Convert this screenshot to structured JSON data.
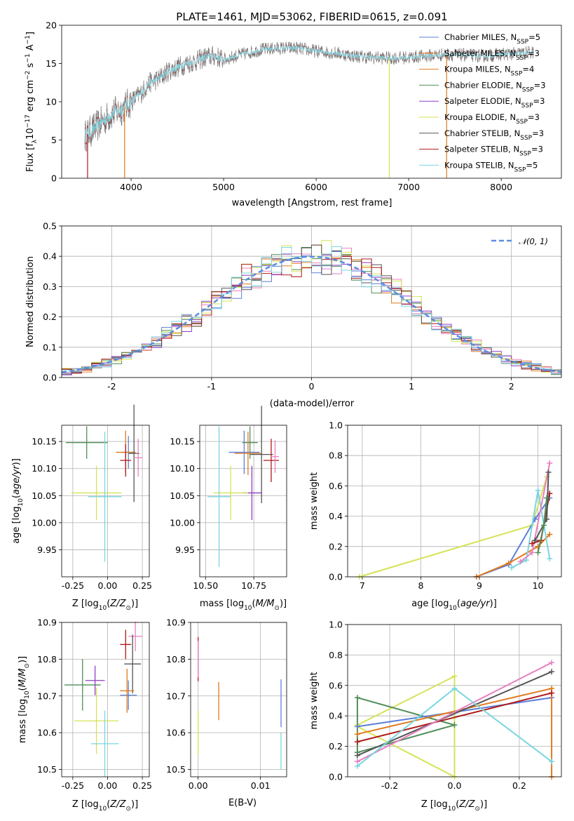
{
  "figure_title": "PLATE=1461, MJD=53062, FIBERID=0615, z=0.091",
  "colors": {
    "Chabrier MILES": "#5b7fd8",
    "Salpeter MILES": "#e07a1f",
    "Kroupa MILES": "#e07a1f",
    "Chabrier ELODIE": "#4f8f58",
    "Salpeter ELODIE": "#8e3fc4",
    "Kroupa ELODIE": "#d6e356",
    "Chabrier STELIB": "#555555",
    "Salpeter STELIB": "#b01a1a",
    "Kroupa STELIB": "#7ad6e0",
    "Kroupa MILES pink": "#e880c0",
    "normal": "#5b8ee0"
  },
  "chart_data": [
    {
      "type": "line",
      "panel": "spectrum",
      "xlabel": "wavelength [Angstrom, rest frame]",
      "ylabel": "Flux [fλ10⁻¹⁷ erg cm⁻² s⁻¹ A⁻¹]",
      "xlim": [
        3250,
        8650
      ],
      "ylim": [
        0,
        20
      ],
      "xticks": [
        4000,
        5000,
        6000,
        7000,
        8000
      ],
      "yticks": [
        0,
        5,
        10,
        15,
        20
      ],
      "legend_position": "right",
      "grid": false,
      "continuum": {
        "x": [
          3500,
          3600,
          3700,
          3800,
          3900,
          4000,
          4100,
          4200,
          4300,
          4400,
          4500,
          4600,
          4700,
          4800,
          4900,
          5000,
          5200,
          5400,
          5600,
          5800,
          6000,
          6200,
          6400,
          6600,
          6800,
          7000,
          7200,
          7400,
          7600,
          7800,
          8000,
          8200,
          8350
        ],
        "y": [
          5.5,
          6.5,
          7.5,
          8.5,
          9.0,
          10.0,
          11.0,
          12.5,
          13.0,
          14.0,
          14.5,
          15.0,
          15.3,
          15.8,
          16.0,
          15.5,
          16.2,
          16.8,
          17.0,
          17.0,
          16.6,
          16.4,
          16.0,
          15.8,
          15.7,
          15.8,
          16.0,
          16.2,
          16.1,
          16.0,
          16.2,
          16.3,
          16.5
        ]
      },
      "series": [
        {
          "name": "Chabrier MILES, N_SSP=5",
          "label_main": "Chabrier MILES, N",
          "label_sub": "SSP",
          "label_tail": "=5"
        },
        {
          "name": "Salpeter MILES, N_SSP=3",
          "label_main": "Salpeter MILES, N",
          "label_sub": "SSP",
          "label_tail": "=3"
        },
        {
          "name": "Kroupa MILES, N_SSP=4",
          "label_main": "Kroupa MILES, N",
          "label_sub": "SSP",
          "label_tail": "=4"
        },
        {
          "name": "Chabrier ELODIE, N_SSP=3",
          "label_main": "Chabrier ELODIE, N",
          "label_sub": "SSP",
          "label_tail": "=3"
        },
        {
          "name": "Salpeter ELODIE, N_SSP=3",
          "label_main": "Salpeter ELODIE, N",
          "label_sub": "SSP",
          "label_tail": "=3"
        },
        {
          "name": "Kroupa ELODIE, N_SSP=3",
          "label_main": "Kroupa ELODIE, N",
          "label_sub": "SSP",
          "label_tail": "=3"
        },
        {
          "name": "Chabrier STELIB, N_SSP=3",
          "label_main": "Chabrier STELIB, N",
          "label_sub": "SSP",
          "label_tail": "=3"
        },
        {
          "name": "Salpeter STELIB, N_SSP=3",
          "label_main": "Salpeter STELIB, N",
          "label_sub": "SSP",
          "label_tail": "=3"
        },
        {
          "name": "Kroupa STELIB, N_SSP=5",
          "label_main": "Kroupa STELIB, N",
          "label_sub": "SSP",
          "label_tail": "=5"
        }
      ]
    },
    {
      "type": "line",
      "panel": "histogram",
      "xlabel": "(data-model)/error",
      "ylabel": "Normed distribution",
      "xlim": [
        -2.5,
        2.5
      ],
      "ylim": [
        0,
        0.5
      ],
      "xticks": [
        -2,
        -1,
        0,
        1,
        2
      ],
      "yticks": [
        0.0,
        0.1,
        0.2,
        0.3,
        0.4,
        0.5
      ],
      "grid": true,
      "legend": "N(0,1)",
      "legend_position": "top-right"
    },
    {
      "type": "scatter",
      "panel": "age-vs-Z",
      "xlabel": "Z [log10(Z/Z⊙)]",
      "ylabel": "age  [log10(age/yr)]",
      "xlim": [
        -0.33,
        0.3
      ],
      "ylim": [
        9.9,
        10.18
      ],
      "xticks": [
        -0.25,
        0.0,
        0.25
      ],
      "yticks": [
        9.95,
        10.0,
        10.05,
        10.1,
        10.15
      ],
      "points": [
        {
          "x": -0.15,
          "y": 10.148,
          "xerr": 0.15,
          "yerr": 0.03,
          "color": "#4f8f58"
        },
        {
          "x": 0.15,
          "y": 10.13,
          "xerr": 0.05,
          "yerr": 0.03,
          "color": "#5b7fd8"
        },
        {
          "x": 0.13,
          "y": 10.13,
          "xerr": 0.07,
          "yerr": 0.04,
          "color": "#e07a1f"
        },
        {
          "x": 0.19,
          "y": 10.128,
          "xerr": 0.04,
          "yerr": 0.09,
          "color": "#555555"
        },
        {
          "x": 0.13,
          "y": 10.115,
          "xerr": 0.04,
          "yerr": 0.03,
          "color": "#b01a1a"
        },
        {
          "x": 0.22,
          "y": 10.12,
          "xerr": 0.03,
          "yerr": 0.035,
          "color": "#e880c0"
        },
        {
          "x": -0.08,
          "y": 10.055,
          "xerr": 0.18,
          "yerr": 0.05,
          "color": "#d6e356"
        },
        {
          "x": -0.02,
          "y": 10.048,
          "xerr": 0.12,
          "yerr": 0.12,
          "color": "#7ad6e0"
        }
      ]
    },
    {
      "type": "scatter",
      "panel": "age-vs-mass",
      "xlabel": "mass [log10(M/M⊙)]",
      "ylabel": "",
      "xlim": [
        10.47,
        10.92
      ],
      "ylim": [
        9.9,
        10.18
      ],
      "xticks": [
        10.5,
        10.75
      ],
      "yticks": [
        9.95,
        10.0,
        10.05,
        10.1,
        10.15
      ],
      "points": [
        {
          "x": 10.73,
          "y": 10.148,
          "xerr": 0.04,
          "yerr": 0.03,
          "color": "#4f8f58"
        },
        {
          "x": 10.7,
          "y": 10.13,
          "xerr": 0.08,
          "yerr": 0.04,
          "color": "#5b7fd8"
        },
        {
          "x": 10.72,
          "y": 10.128,
          "xerr": 0.07,
          "yerr": 0.04,
          "color": "#e07a1f"
        },
        {
          "x": 10.79,
          "y": 10.126,
          "xerr": 0.06,
          "yerr": 0.09,
          "color": "#555555"
        },
        {
          "x": 10.84,
          "y": 10.115,
          "xerr": 0.04,
          "yerr": 0.04,
          "color": "#b01a1a"
        },
        {
          "x": 10.86,
          "y": 10.122,
          "xerr": 0.02,
          "yerr": 0.03,
          "color": "#e880c0"
        },
        {
          "x": 10.74,
          "y": 10.055,
          "xerr": 0.05,
          "yerr": 0.05,
          "color": "#8e3fc4"
        },
        {
          "x": 10.63,
          "y": 10.055,
          "xerr": 0.09,
          "yerr": 0.05,
          "color": "#d6e356"
        },
        {
          "x": 10.57,
          "y": 10.048,
          "xerr": 0.06,
          "yerr": 0.13,
          "color": "#7ad6e0"
        }
      ]
    },
    {
      "type": "line",
      "panel": "weight-vs-age",
      "xlabel": "age  [log10(age/yr)]",
      "ylabel": "mass weight",
      "xlim": [
        6.75,
        10.4
      ],
      "ylim": [
        0,
        1
      ],
      "xticks": [
        7,
        8,
        9,
        10
      ],
      "yticks": [
        0.0,
        0.2,
        0.4,
        0.6,
        0.8,
        1.0
      ],
      "grid": true,
      "series": [
        {
          "color": "#d6e356",
          "x": [
            6.95,
            9.9,
            10.15
          ],
          "y": [
            0.0,
            0.34,
            0.66
          ]
        },
        {
          "color": "#5b7fd8",
          "x": [
            8.95,
            9.5,
            9.95,
            10.2
          ],
          "y": [
            0.0,
            0.08,
            0.38,
            0.52
          ]
        },
        {
          "color": "#e07a1f",
          "x": [
            8.95,
            9.5,
            10.0,
            10.2
          ],
          "y": [
            0.0,
            0.09,
            0.2,
            0.28
          ]
        },
        {
          "color": "#7ad6e0",
          "x": [
            9.55,
            9.8,
            10.0,
            10.2
          ],
          "y": [
            0.06,
            0.11,
            0.57,
            0.12
          ]
        },
        {
          "color": "#e880c0",
          "x": [
            9.7,
            9.9,
            10.2
          ],
          "y": [
            0.1,
            0.16,
            0.75
          ]
        },
        {
          "color": "#b01a1a",
          "x": [
            9.9,
            10.05,
            10.2
          ],
          "y": [
            0.22,
            0.24,
            0.55
          ]
        },
        {
          "color": "#555555",
          "x": [
            9.95,
            10.15,
            10.18
          ],
          "y": [
            0.24,
            0.38,
            0.69
          ]
        },
        {
          "color": "#4f8f58",
          "x": [
            10.0,
            10.1,
            10.15
          ],
          "y": [
            0.16,
            0.34,
            0.52
          ]
        }
      ]
    },
    {
      "type": "scatter",
      "panel": "mass-vs-Z",
      "xlabel": "Z [log10(Z/Z⊙)]",
      "ylabel": "mass [log10(M/M⊙)]",
      "xlim": [
        -0.33,
        0.3
      ],
      "ylim": [
        10.48,
        10.9
      ],
      "xticks": [
        -0.25,
        0.0,
        0.25
      ],
      "yticks": [
        10.5,
        10.6,
        10.7,
        10.8,
        10.9
      ],
      "points": [
        {
          "x": -0.18,
          "y": 10.73,
          "xerr": 0.13,
          "yerr": 0.07,
          "color": "#4f8f58"
        },
        {
          "x": -0.09,
          "y": 10.742,
          "xerr": 0.07,
          "yerr": 0.04,
          "color": "#8e3fc4"
        },
        {
          "x": 0.13,
          "y": 10.84,
          "xerr": 0.04,
          "yerr": 0.04,
          "color": "#b01a1a"
        },
        {
          "x": 0.2,
          "y": 10.862,
          "xerr": 0.05,
          "yerr": 0.04,
          "color": "#e880c0"
        },
        {
          "x": 0.18,
          "y": 10.787,
          "xerr": 0.06,
          "yerr": 0.08,
          "color": "#555555"
        },
        {
          "x": 0.15,
          "y": 10.702,
          "xerr": 0.06,
          "yerr": 0.04,
          "color": "#5b7fd8"
        },
        {
          "x": 0.14,
          "y": 10.714,
          "xerr": 0.05,
          "yerr": 0.06,
          "color": "#e07a1f"
        },
        {
          "x": -0.08,
          "y": 10.632,
          "xerr": 0.16,
          "yerr": 0.09,
          "color": "#d6e356"
        },
        {
          "x": -0.02,
          "y": 10.57,
          "xerr": 0.1,
          "yerr": 0.09,
          "color": "#7ad6e0"
        }
      ]
    },
    {
      "type": "scatter",
      "panel": "mass-vs-EBV",
      "xlabel": "E(B-V)",
      "ylabel": "",
      "xlim": [
        -0.0012,
        0.0142
      ],
      "ylim": [
        10.48,
        10.9
      ],
      "xticks": [
        0.0,
        0.01
      ],
      "xticklabels": [
        "0.00",
        "0.01"
      ],
      "yticks": [
        10.5,
        10.6,
        10.7,
        10.8,
        10.9
      ],
      "points": [
        {
          "x": 0.0,
          "y": 10.8,
          "yerr": 0.06,
          "color": "#b01a1a"
        },
        {
          "x": 0.0,
          "y": 10.8,
          "yerr": 0.05,
          "color": "#e880c0"
        },
        {
          "x": 0.0,
          "y": 10.6,
          "yerr": 0.06,
          "color": "#d6e356"
        },
        {
          "x": 0.0033,
          "y": 10.686,
          "yerr": 0.052,
          "color": "#e07a1f"
        },
        {
          "x": 0.0133,
          "y": 10.68,
          "yerr": 0.065,
          "color": "#5b7fd8"
        },
        {
          "x": 0.0133,
          "y": 10.55,
          "yerr": 0.05,
          "color": "#7ad6e0"
        }
      ]
    },
    {
      "type": "line",
      "panel": "weight-vs-Z",
      "xlabel": "Z [log10(Z/Z⊙)]",
      "ylabel": "mass weight",
      "xlim": [
        -0.33,
        0.33
      ],
      "ylim": [
        0,
        1
      ],
      "xticks": [
        -0.2,
        0.0,
        0.2
      ],
      "yticks": [
        0.0,
        0.2,
        0.4,
        0.6,
        0.8,
        1.0
      ],
      "grid": true,
      "series": [
        {
          "color": "#d6e356",
          "x": [
            -0.3,
            0.0,
            0.0,
            -0.3
          ],
          "y": [
            0.34,
            0.66,
            0.0,
            0.33
          ]
        },
        {
          "color": "#4f8f58",
          "x": [
            -0.3,
            0.0,
            -0.3,
            -0.3
          ],
          "y": [
            0.16,
            0.34,
            0.52,
            0.16
          ]
        },
        {
          "color": "#5b7fd8",
          "x": [
            -0.3,
            0.3
          ],
          "y": [
            0.33,
            0.52
          ]
        },
        {
          "color": "#e07a1f",
          "x": [
            -0.3,
            0.3,
            0.3
          ],
          "y": [
            0.28,
            0.58,
            0.0
          ]
        },
        {
          "color": "#b01a1a",
          "x": [
            -0.3,
            0.3
          ],
          "y": [
            0.23,
            0.55
          ]
        },
        {
          "color": "#555555",
          "x": [
            -0.3,
            0.3
          ],
          "y": [
            0.14,
            0.69
          ]
        },
        {
          "color": "#e880c0",
          "x": [
            -0.3,
            0.3
          ],
          "y": [
            0.1,
            0.75
          ]
        },
        {
          "color": "#7ad6e0",
          "x": [
            -0.3,
            0.0,
            0.3
          ],
          "y": [
            0.07,
            0.58,
            0.1
          ]
        }
      ]
    }
  ]
}
